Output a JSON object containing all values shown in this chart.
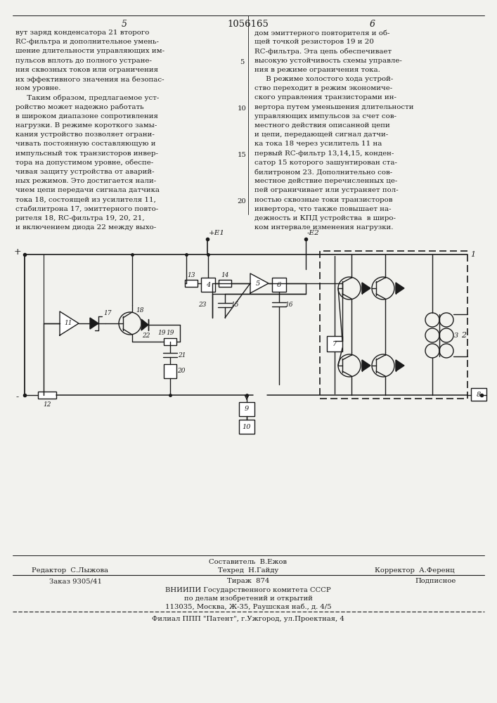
{
  "title_number": "1056165",
  "page_left": "5",
  "page_right": "6",
  "bg_color": "#f2f2ee",
  "text_color": "#1a1a1a",
  "left_column_text": [
    "вут заряд конденсатора 21 второго",
    "RC-фильтра и дополнительное умень-",
    "шение длительности управляющих им-",
    "пульсов вплоть до полного устране-",
    "ния сквозных токов или ограничения",
    "их эффективного значения на безопас-",
    "ном уровне.",
    "     Таким образом, предлагаемое уст-",
    "ройство может надежно работать",
    "в широком диапазоне сопротивления",
    "нагрузки. В режиме короткого замы-",
    "кания устройство позволяет ограни-",
    "чивать постоянную составляющую и",
    "импульсный ток транзисторов инвер-",
    "тора на допустимом уровне, обеспе-",
    "чивая защиту устройства от аварий-",
    "ных режимов. Это достигается нали-",
    "чием цепи передачи сигнала датчика",
    "тока 18, состоящей из усилителя 11,",
    "стабилитрона 17, эмиттерного повто-",
    "рителя 18, RC-фильтра 19, 20, 21,",
    "и включением диода 22 между выхо-"
  ],
  "right_column_text": [
    "дом эмиттерного повторителя и об-",
    "щей точкой резисторов 19 и 20",
    "RC-фильтра. Эта цепь обеспечивает",
    "высокую устойчивость схемы управле-",
    "ния в режиме ограничения тока.",
    "     В режиме холостого хода устрой-",
    "ство переходит в режим экономиче-",
    "ского управления транзисторами ин-",
    "вертора путем уменьшения длительности",
    "управляющих импульсов за счет сов-",
    "местного действия описанной цепи",
    "и цепи, передающей сигнал датчи-",
    "ка тока 18 через усилитель 11 на",
    "первый RC-фильтр 13,14,15, конден-",
    "сатор 15 которого зашунтирован ста-",
    "билитроном 23. Дополнительно сов-",
    "местное действие перечисленных це-",
    "пей ограничивает или устраняет пол-",
    "ностью сквозные токи транзисторов",
    "инвертора, что также повышает на-",
    "дежность и КПД устройства  в широ-",
    "ком интервале изменения нагрузки."
  ],
  "bottom_dashed_line": "Филиал ППП \"Патент\", г.Ужгород, ул.Проектная, 4"
}
